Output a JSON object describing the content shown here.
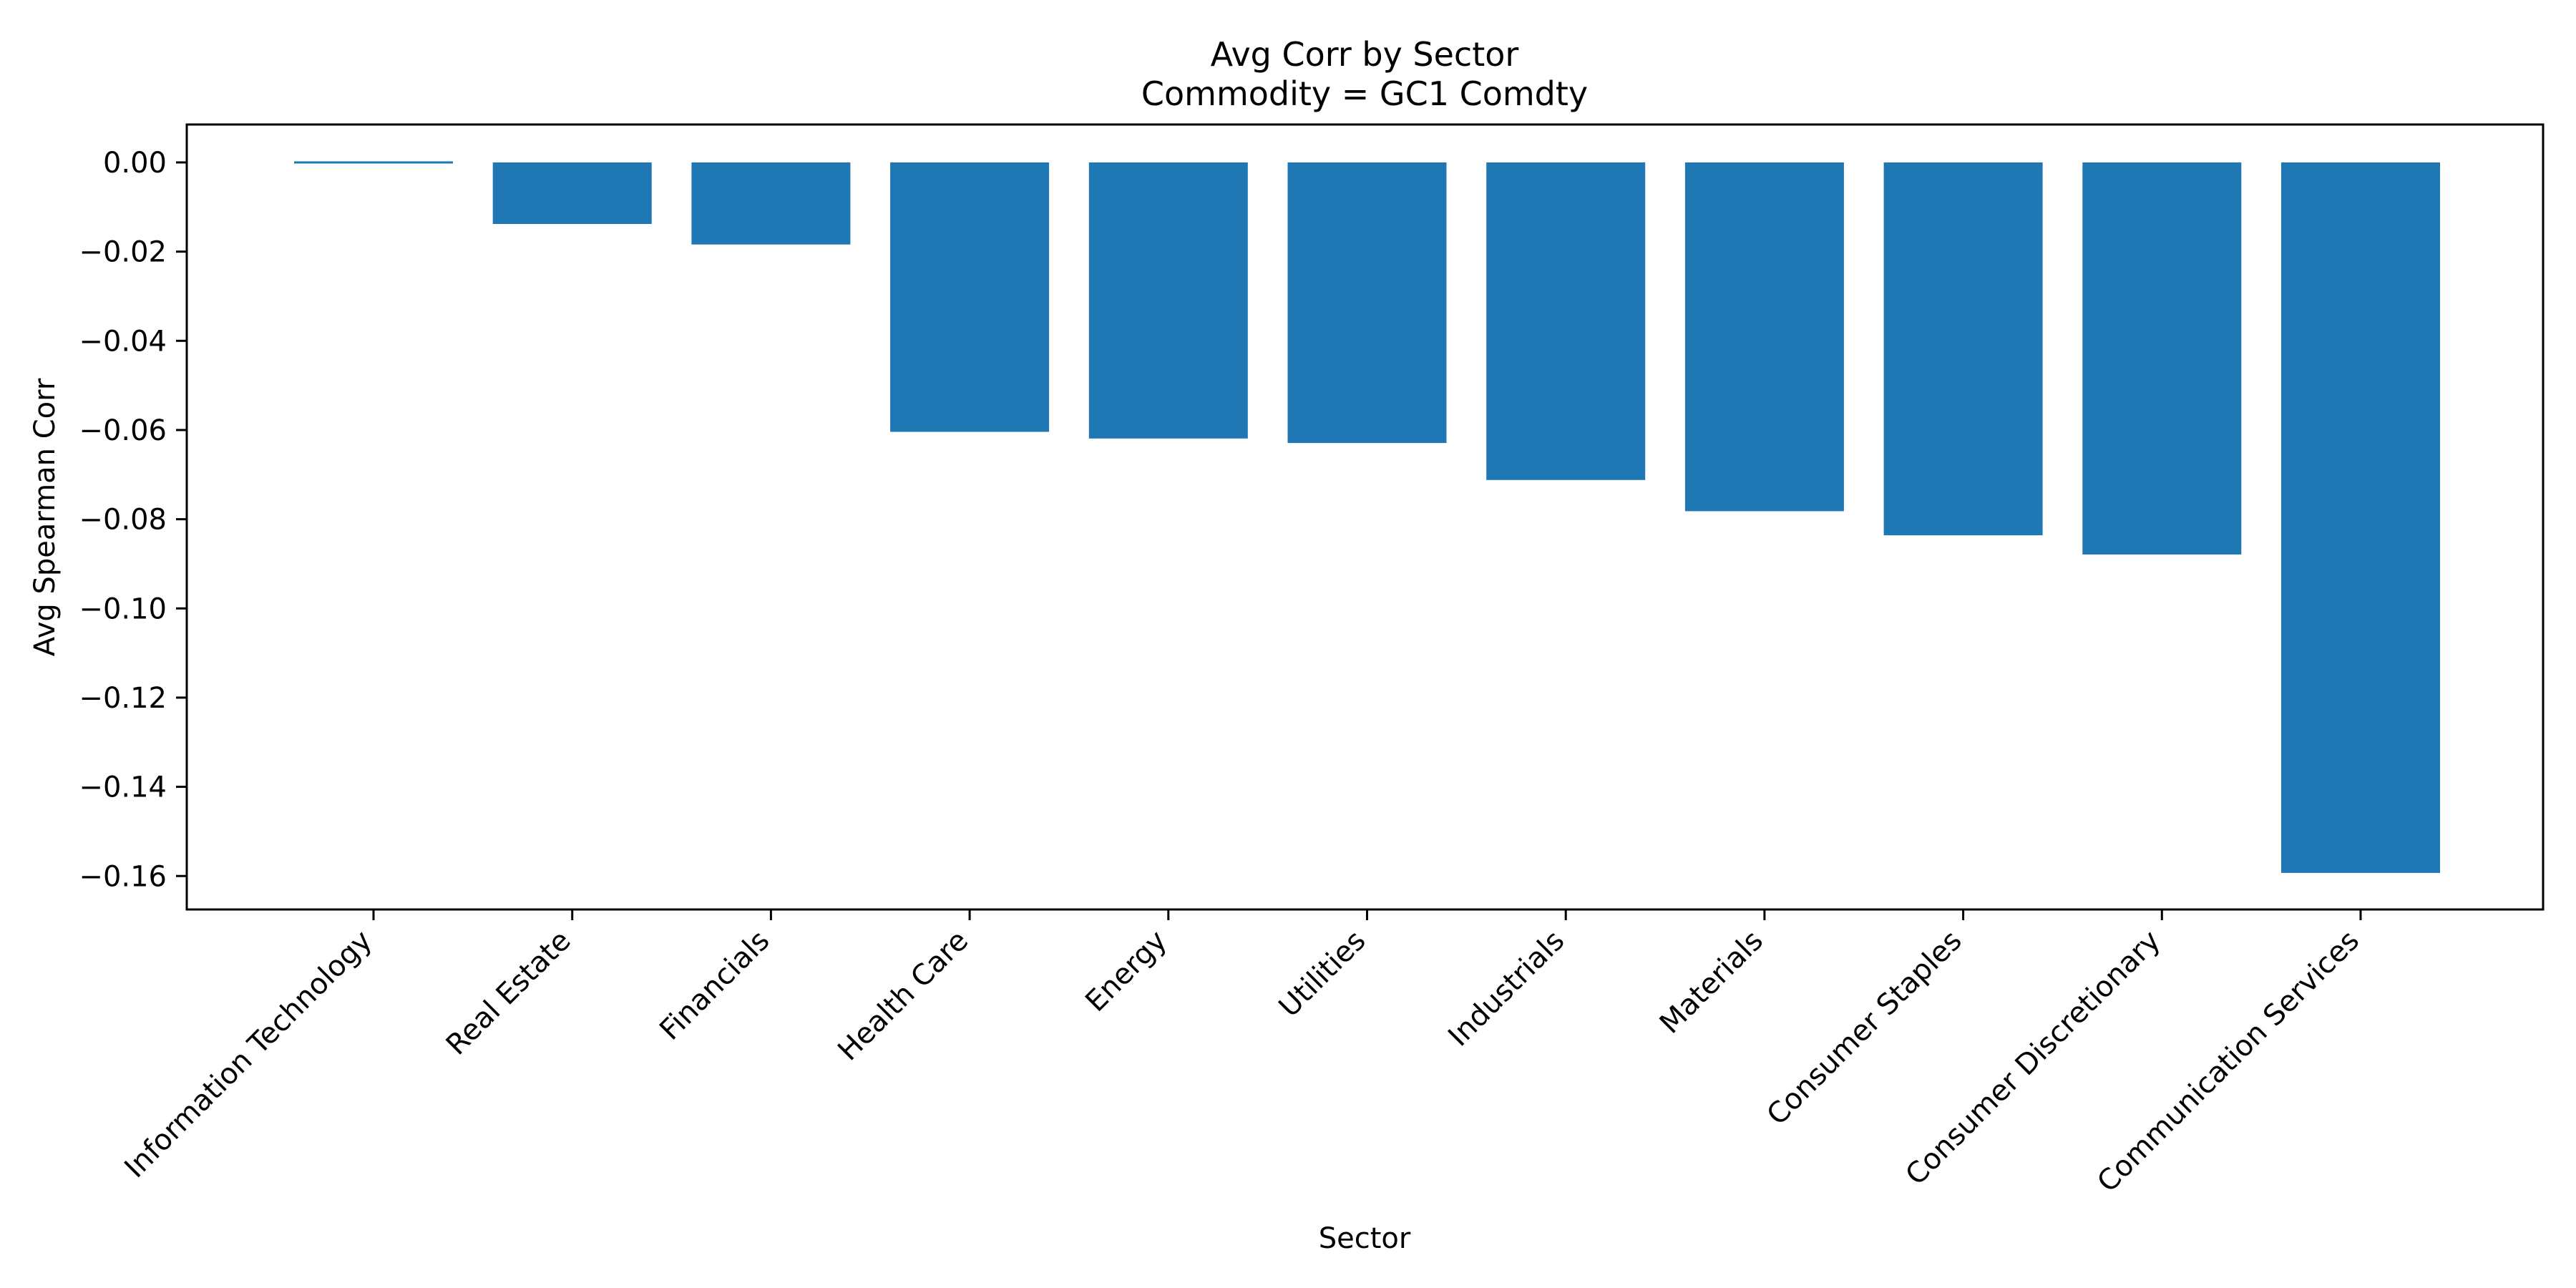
{
  "chart_data": {
    "type": "bar",
    "title": "Avg Corr by Sector",
    "subtitle": "Commodity = GC1 Comdty",
    "xlabel": "Sector",
    "ylabel": "Avg Spearman Corr",
    "categories": [
      "Information Technology",
      "Real Estate",
      "Financials",
      "Health Care",
      "Energy",
      "Utilities",
      "Industrials",
      "Materials",
      "Consumer Staples",
      "Consumer Discretionary",
      "Communication Services"
    ],
    "values": [
      0.0003,
      -0.0138,
      -0.0184,
      -0.0604,
      -0.0619,
      -0.0629,
      -0.0712,
      -0.0782,
      -0.0836,
      -0.0879,
      -0.1593
    ],
    "ylim": [
      -0.1675,
      0.0085
    ],
    "yticks": [
      "0.00",
      "−0.02",
      "−0.04",
      "−0.06",
      "−0.08",
      "−0.10",
      "−0.12",
      "−0.14",
      "−0.16"
    ],
    "ytick_values": [
      0.0,
      -0.02,
      -0.04,
      -0.06,
      -0.08,
      -0.1,
      -0.12,
      -0.14,
      -0.16
    ],
    "bar_color": "#1f77b4",
    "grid": false,
    "legend": "none"
  }
}
